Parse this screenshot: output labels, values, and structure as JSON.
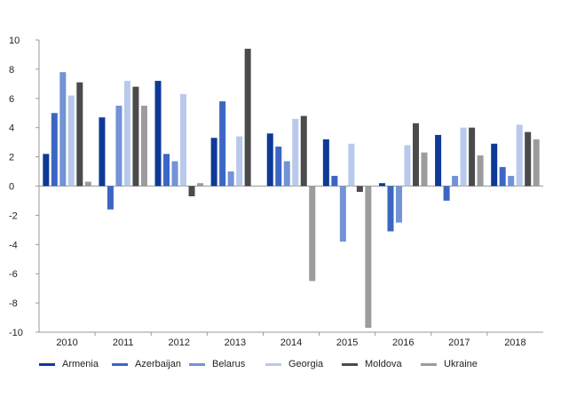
{
  "chart_data": {
    "type": "bar",
    "categories": [
      "2010",
      "2011",
      "2012",
      "2013",
      "2014",
      "2015",
      "2016",
      "2017",
      "2018"
    ],
    "ylim": [
      -10,
      10
    ],
    "yticks": [
      10,
      8,
      6,
      4,
      2,
      0,
      -2,
      -4,
      -6,
      -8,
      -10
    ],
    "grid": false,
    "legend_position": "bottom",
    "series": [
      {
        "name": "Armenia",
        "color": "#0d3a96",
        "values": [
          2.2,
          4.7,
          7.2,
          3.3,
          3.6,
          3.2,
          0.2,
          3.5,
          2.9
        ]
      },
      {
        "name": "Azerbaijan",
        "color": "#3b66c4",
        "values": [
          5.0,
          -1.6,
          2.2,
          5.8,
          2.7,
          0.7,
          -3.1,
          -1.0,
          1.3
        ]
      },
      {
        "name": "Belarus",
        "color": "#7393d6",
        "values": [
          7.8,
          5.5,
          1.7,
          1.0,
          1.7,
          -3.8,
          -2.5,
          0.7,
          0.7
        ]
      },
      {
        "name": "Georgia",
        "color": "#b8c9ec",
        "values": [
          6.2,
          7.2,
          6.3,
          3.4,
          4.6,
          2.9,
          2.8,
          4.0,
          4.2
        ]
      },
      {
        "name": "Moldova",
        "color": "#4b4b4d",
        "values": [
          7.1,
          6.8,
          -0.7,
          9.4,
          4.8,
          -0.4,
          4.3,
          4.0,
          3.7
        ]
      },
      {
        "name": "Ukraine",
        "color": "#9c9c9e",
        "values": [
          0.3,
          5.5,
          0.2,
          0.0,
          -6.5,
          -9.7,
          2.3,
          2.1,
          3.2
        ]
      }
    ]
  }
}
